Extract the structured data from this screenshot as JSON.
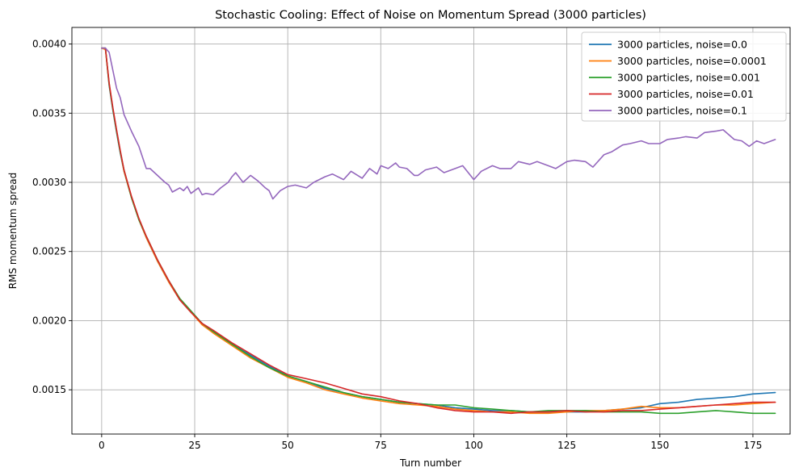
{
  "chart_data": {
    "type": "line",
    "title": "Stochastic Cooling: Effect of Noise on Momentum Spread (3000 particles)",
    "xlabel": "Turn number",
    "ylabel": "RMS momentum spread",
    "xlim": [
      -8,
      185
    ],
    "ylim": [
      0.00118,
      0.00412
    ],
    "xticks": [
      0,
      25,
      50,
      75,
      100,
      125,
      150,
      175
    ],
    "xtick_labels": [
      "0",
      "25",
      "50",
      "75",
      "100",
      "125",
      "150",
      "175"
    ],
    "yticks": [
      0.0015,
      0.002,
      0.0025,
      0.003,
      0.0035,
      0.004
    ],
    "ytick_labels": [
      "0.0015",
      "0.0020",
      "0.0025",
      "0.0030",
      "0.0035",
      "0.0040"
    ],
    "grid": true,
    "legend_position": "top-right",
    "series": [
      {
        "name": "3000 particles, noise=0.0",
        "color": "#1f77b4",
        "x": [
          0,
          1,
          2,
          3,
          4,
          5,
          6,
          8,
          10,
          12,
          15,
          18,
          21,
          24,
          27,
          30,
          35,
          40,
          45,
          50,
          55,
          60,
          65,
          70,
          75,
          80,
          85,
          90,
          95,
          100,
          105,
          110,
          115,
          120,
          125,
          130,
          135,
          140,
          145,
          150,
          155,
          160,
          165,
          170,
          175,
          181
        ],
        "values": [
          0.00397,
          0.00397,
          0.0037,
          0.00352,
          0.00336,
          0.00321,
          0.00308,
          0.00289,
          0.00273,
          0.0026,
          0.00243,
          0.00228,
          0.00215,
          0.00206,
          0.00198,
          0.00192,
          0.00183,
          0.00175,
          0.00167,
          0.0016,
          0.00156,
          0.00151,
          0.00148,
          0.00145,
          0.00143,
          0.00141,
          0.0014,
          0.00139,
          0.00137,
          0.00136,
          0.00135,
          0.00135,
          0.00134,
          0.00134,
          0.00134,
          0.00134,
          0.00135,
          0.00136,
          0.00137,
          0.0014,
          0.00141,
          0.00143,
          0.00144,
          0.00145,
          0.00147,
          0.00148
        ]
      },
      {
        "name": "3000 particles, noise=0.0001",
        "color": "#ff7f0e",
        "x": [
          0,
          1,
          2,
          3,
          4,
          5,
          6,
          8,
          10,
          12,
          15,
          18,
          21,
          24,
          27,
          30,
          35,
          40,
          45,
          50,
          55,
          60,
          65,
          70,
          75,
          80,
          85,
          90,
          95,
          100,
          105,
          110,
          115,
          120,
          125,
          130,
          135,
          140,
          145,
          150,
          155,
          160,
          165,
          170,
          175,
          181
        ],
        "values": [
          0.00397,
          0.00396,
          0.00371,
          0.00353,
          0.00337,
          0.00322,
          0.00308,
          0.00289,
          0.00273,
          0.0026,
          0.00243,
          0.00228,
          0.00215,
          0.00206,
          0.00197,
          0.00191,
          0.00182,
          0.00173,
          0.00166,
          0.00159,
          0.00155,
          0.0015,
          0.00147,
          0.00144,
          0.00142,
          0.0014,
          0.00139,
          0.00138,
          0.00136,
          0.00135,
          0.00134,
          0.00134,
          0.00133,
          0.00133,
          0.00134,
          0.00135,
          0.00135,
          0.00136,
          0.00138,
          0.00137,
          0.00137,
          0.00138,
          0.00139,
          0.00139,
          0.0014,
          0.00141
        ]
      },
      {
        "name": "3000 particles, noise=0.001",
        "color": "#2ca02c",
        "x": [
          0,
          1,
          2,
          3,
          4,
          5,
          6,
          8,
          10,
          12,
          15,
          18,
          21,
          24,
          27,
          30,
          35,
          40,
          45,
          50,
          55,
          60,
          65,
          70,
          75,
          80,
          85,
          90,
          95,
          100,
          105,
          110,
          115,
          120,
          125,
          130,
          135,
          140,
          145,
          150,
          155,
          160,
          165,
          170,
          175,
          181
        ],
        "values": [
          0.00397,
          0.00397,
          0.00371,
          0.00353,
          0.00337,
          0.00322,
          0.00309,
          0.00289,
          0.00273,
          0.00261,
          0.00244,
          0.00229,
          0.00216,
          0.00207,
          0.00198,
          0.00192,
          0.00183,
          0.00174,
          0.00166,
          0.0016,
          0.00156,
          0.00152,
          0.00148,
          0.00145,
          0.00143,
          0.00141,
          0.0014,
          0.00139,
          0.00139,
          0.00137,
          0.00136,
          0.00135,
          0.00134,
          0.00135,
          0.00135,
          0.00135,
          0.00134,
          0.00134,
          0.00134,
          0.00133,
          0.00133,
          0.00134,
          0.00135,
          0.00134,
          0.00133,
          0.00133
        ]
      },
      {
        "name": "3000 particles, noise=0.01",
        "color": "#d62728",
        "x": [
          0,
          1,
          2,
          3,
          4,
          5,
          6,
          8,
          10,
          12,
          15,
          18,
          21,
          24,
          27,
          30,
          35,
          40,
          45,
          50,
          55,
          60,
          65,
          70,
          75,
          80,
          85,
          90,
          95,
          100,
          105,
          110,
          115,
          120,
          125,
          130,
          135,
          140,
          145,
          150,
          155,
          160,
          165,
          170,
          175,
          181
        ],
        "values": [
          0.00397,
          0.00397,
          0.00372,
          0.00354,
          0.00338,
          0.00323,
          0.00309,
          0.0029,
          0.00274,
          0.00261,
          0.00244,
          0.00229,
          0.00215,
          0.00206,
          0.00198,
          0.00193,
          0.00184,
          0.00176,
          0.00168,
          0.00161,
          0.00158,
          0.00155,
          0.00151,
          0.00147,
          0.00145,
          0.00142,
          0.0014,
          0.00137,
          0.00135,
          0.00134,
          0.00134,
          0.00133,
          0.00134,
          0.00134,
          0.00135,
          0.00134,
          0.00134,
          0.00135,
          0.00135,
          0.00136,
          0.00137,
          0.00138,
          0.00139,
          0.0014,
          0.00141,
          0.00141
        ]
      },
      {
        "name": "3000 particles, noise=0.1",
        "color": "#9467bd",
        "x": [
          0,
          1,
          2,
          3,
          4,
          5,
          6,
          8,
          10,
          11,
          12,
          13,
          15,
          17,
          18,
          19,
          21,
          22,
          23,
          24,
          26,
          27,
          28,
          30,
          32,
          34,
          35,
          36,
          38,
          40,
          42,
          44,
          45,
          46,
          48,
          50,
          52,
          55,
          57,
          60,
          62,
          65,
          67,
          70,
          72,
          74,
          75,
          77,
          79,
          80,
          82,
          84,
          85,
          87,
          90,
          92,
          95,
          97,
          100,
          102,
          105,
          107,
          110,
          112,
          115,
          117,
          120,
          122,
          125,
          127,
          130,
          132,
          135,
          137,
          140,
          142,
          145,
          147,
          150,
          152,
          155,
          157,
          160,
          162,
          165,
          167,
          170,
          172,
          174,
          176,
          178,
          181
        ],
        "values": [
          0.00397,
          0.00397,
          0.00394,
          0.00381,
          0.00368,
          0.00361,
          0.00349,
          0.00337,
          0.00326,
          0.00318,
          0.0031,
          0.0031,
          0.00305,
          0.003,
          0.00298,
          0.00293,
          0.00296,
          0.00294,
          0.00297,
          0.00292,
          0.00296,
          0.00291,
          0.00292,
          0.00291,
          0.00296,
          0.003,
          0.00304,
          0.00307,
          0.003,
          0.00305,
          0.00301,
          0.00296,
          0.00294,
          0.00288,
          0.00294,
          0.00297,
          0.00298,
          0.00296,
          0.003,
          0.00304,
          0.00306,
          0.00302,
          0.00308,
          0.00303,
          0.0031,
          0.00306,
          0.00312,
          0.0031,
          0.00314,
          0.00311,
          0.0031,
          0.00305,
          0.00305,
          0.00309,
          0.00311,
          0.00307,
          0.0031,
          0.00312,
          0.00302,
          0.00308,
          0.00312,
          0.0031,
          0.0031,
          0.00315,
          0.00313,
          0.00315,
          0.00312,
          0.0031,
          0.00315,
          0.00316,
          0.00315,
          0.00311,
          0.0032,
          0.00322,
          0.00327,
          0.00328,
          0.0033,
          0.00328,
          0.00328,
          0.00331,
          0.00332,
          0.00333,
          0.00332,
          0.00336,
          0.00337,
          0.00338,
          0.00331,
          0.0033,
          0.00326,
          0.0033,
          0.00328,
          0.00331
        ]
      }
    ]
  }
}
